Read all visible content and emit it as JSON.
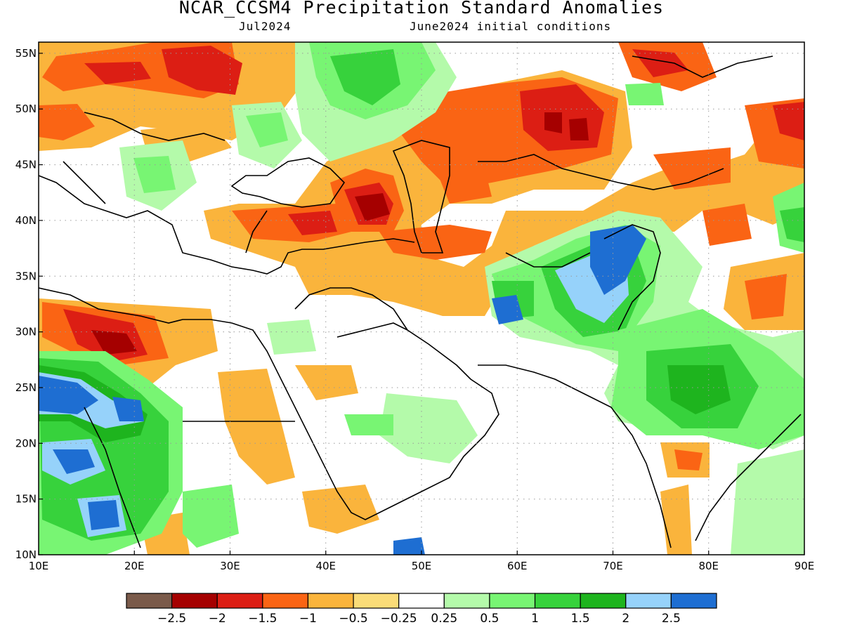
{
  "title": "NCAR_CCSM4 Precipitation Standard Anomalies",
  "subtitle_left": "Jul2024",
  "subtitle_right": "June2024 initial conditions",
  "lon_labels": [
    "10E",
    "20E",
    "30E",
    "40E",
    "50E",
    "60E",
    "70E",
    "80E",
    "90E"
  ],
  "lat_labels": [
    "55N",
    "50N",
    "45N",
    "40N",
    "35N",
    "30N",
    "25N",
    "20N",
    "15N",
    "10N"
  ],
  "colorbar": {
    "colors": [
      "#7a5a4a",
      "#a50000",
      "#dc1e14",
      "#fa6414",
      "#fab43c",
      "#fadc78",
      "#ffffff",
      "#b4faaa",
      "#78f573",
      "#37d23c",
      "#1eb41e",
      "#96d2fa",
      "#1e6ed2"
    ],
    "labels": [
      "−2.5",
      "−2",
      "−1.5",
      "−1",
      "−0.5",
      "−0.25",
      "0.25",
      "0.5",
      "1",
      "1.5",
      "2",
      "2.5"
    ]
  },
  "map_extent": {
    "lon": [
      10,
      90
    ],
    "lat": [
      10,
      56
    ]
  }
}
